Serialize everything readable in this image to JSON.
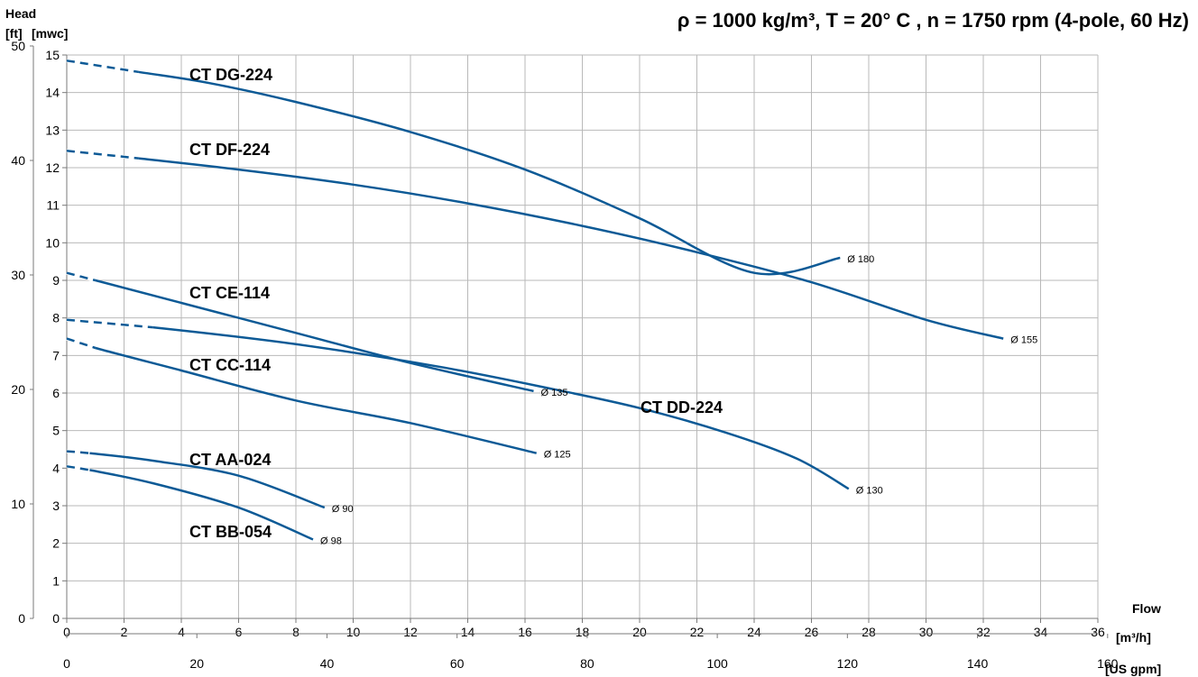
{
  "chart_data": {
    "type": "line",
    "title": "ρ = 1000 kg/m³, T = 20° C , n = 1750 rpm (4-pole, 60 Hz)",
    "y_title": "Head",
    "y_units_ft": "[ft]",
    "y_units_m": "[mwc]",
    "x_title": "Flow",
    "x_units_m3h": "[m³/h]",
    "x_units_gpm": "[US gpm]",
    "xlim_m3h": [
      0,
      36
    ],
    "ylim_m": [
      0,
      15
    ],
    "x_ticks_m3h": [
      "0",
      "2",
      "4",
      "6",
      "8",
      "10",
      "12",
      "14",
      "16",
      "18",
      "20",
      "22",
      "24",
      "26",
      "28",
      "30",
      "32",
      "34",
      "36"
    ],
    "x_ticks_gpm": [
      "0",
      "20",
      "40",
      "60",
      "80",
      "100",
      "120",
      "140",
      "160"
    ],
    "y_ticks_m": [
      "0",
      "1",
      "2",
      "3",
      "4",
      "5",
      "6",
      "7",
      "8",
      "9",
      "10",
      "11",
      "12",
      "13",
      "14",
      "15"
    ],
    "y_ticks_ft": [
      "0",
      "10",
      "20",
      "30",
      "40",
      "50"
    ],
    "grid": true,
    "color": "#0d5a96",
    "series": [
      {
        "name": "CT DG-224",
        "diameter_label": "Ø 180",
        "dashed_until_x": 2.5,
        "x": [
          0,
          2.5,
          5,
          8,
          12,
          16,
          20,
          24,
          27
        ],
        "y": [
          14.85,
          14.55,
          14.25,
          13.75,
          12.95,
          11.95,
          10.65,
          9.2,
          9.6
        ]
      },
      {
        "name": "CT DF-224",
        "diameter_label": "Ø 155",
        "dashed_until_x": 2.5,
        "x": [
          0,
          2.5,
          6,
          10,
          14,
          18,
          22,
          26,
          30,
          32.7
        ],
        "y": [
          12.45,
          12.25,
          11.95,
          11.55,
          11.05,
          10.45,
          9.75,
          8.95,
          7.95,
          7.45
        ]
      },
      {
        "name": "CT CE-114",
        "diameter_label": "Ø 135",
        "dashed_until_x": 1,
        "x": [
          0,
          1,
          4,
          8,
          12,
          16.3
        ],
        "y": [
          9.2,
          9.0,
          8.4,
          7.6,
          6.8,
          6.05
        ]
      },
      {
        "name": "CT DD-224",
        "diameter_label": "Ø 130",
        "dashed_until_x": 3,
        "x": [
          0,
          3,
          8,
          13,
          17,
          20,
          23,
          25.5,
          27.3
        ],
        "y": [
          7.95,
          7.75,
          7.3,
          6.7,
          6.1,
          5.6,
          4.95,
          4.25,
          3.45
        ]
      },
      {
        "name": "CT CC-114",
        "diameter_label": "Ø 125",
        "dashed_until_x": 1,
        "x": [
          0,
          1,
          4,
          8,
          12,
          16.4
        ],
        "y": [
          7.45,
          7.2,
          6.6,
          5.8,
          5.2,
          4.4
        ]
      },
      {
        "name": "CT AA-024",
        "diameter_label": "Ø 90",
        "dashed_until_x": 0.8,
        "x": [
          0,
          0.8,
          3,
          6,
          9
        ],
        "y": [
          4.45,
          4.4,
          4.2,
          3.8,
          2.95
        ]
      },
      {
        "name": "CT BB-054",
        "diameter_label": "Ø 98",
        "dashed_until_x": 0.8,
        "x": [
          0,
          0.8,
          3,
          6,
          8.6
        ],
        "y": [
          4.05,
          3.95,
          3.6,
          2.95,
          2.1
        ]
      }
    ]
  }
}
